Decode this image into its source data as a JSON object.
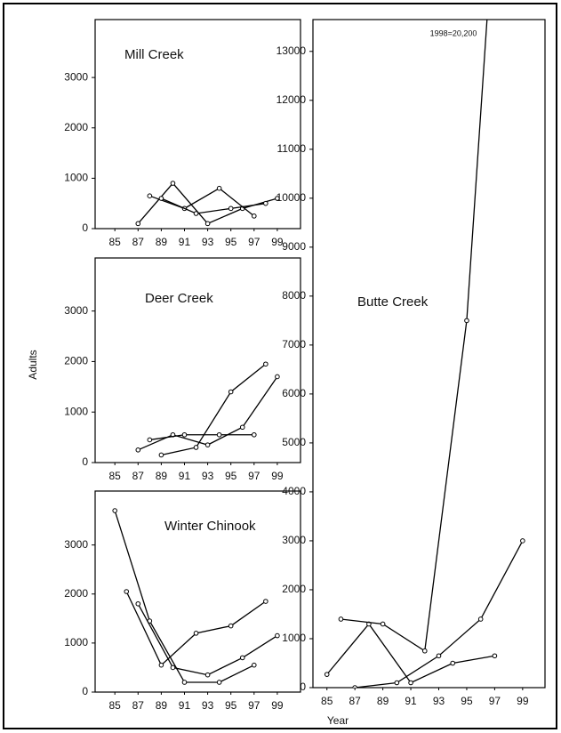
{
  "y_label": "Adults",
  "x_label": "Year",
  "chart_data": [
    {
      "type": "line",
      "title": "Mill Creek",
      "color": "#000000",
      "xlim": [
        83.3,
        101
      ],
      "xticks": [
        85,
        87,
        89,
        91,
        93,
        95,
        97,
        99
      ],
      "ylim": [
        0,
        4150
      ],
      "yticks": [
        0,
        1000,
        2000,
        3000
      ],
      "series": [
        {
          "x": [
            87,
            90,
            93,
            96,
            99
          ],
          "values": [
            100,
            900,
            100,
            400,
            600
          ]
        },
        {
          "x": [
            88,
            91,
            94,
            97
          ],
          "values": [
            650,
            400,
            800,
            250
          ]
        },
        {
          "x": [
            89,
            92,
            95,
            98
          ],
          "values": [
            600,
            300,
            400,
            500
          ]
        }
      ]
    },
    {
      "type": "line",
      "title": "Deer Creek",
      "color": "#000000",
      "xlim": [
        83.3,
        101
      ],
      "xticks": [
        85,
        87,
        89,
        91,
        93,
        95,
        97,
        99
      ],
      "ylim": [
        0,
        4050
      ],
      "yticks": [
        0,
        1000,
        2000,
        3000
      ],
      "series": [
        {
          "x": [
            87,
            90,
            93,
            96,
            99
          ],
          "values": [
            250,
            550,
            350,
            700,
            1700
          ]
        },
        {
          "x": [
            88,
            91,
            94,
            97
          ],
          "values": [
            450,
            550,
            550,
            550
          ]
        },
        {
          "x": [
            89,
            92,
            95,
            98
          ],
          "values": [
            150,
            300,
            1400,
            1950
          ]
        }
      ]
    },
    {
      "type": "line",
      "title": "Winter Chinook",
      "color": "#000000",
      "xlim": [
        83.3,
        101
      ],
      "xticks": [
        85,
        87,
        89,
        91,
        93,
        95,
        97,
        99
      ],
      "ylim": [
        0,
        4100
      ],
      "yticks": [
        0,
        1000,
        2000,
        3000
      ],
      "series": [
        {
          "x": [
            85,
            88,
            91,
            94,
            97
          ],
          "values": [
            3700,
            1450,
            200,
            200,
            550
          ]
        },
        {
          "x": [
            86,
            89,
            92,
            95,
            98
          ],
          "values": [
            2050,
            550,
            1200,
            1350,
            1850
          ]
        },
        {
          "x": [
            87,
            90,
            93,
            96,
            99
          ],
          "values": [
            1800,
            500,
            350,
            700,
            1150
          ]
        }
      ]
    },
    {
      "type": "line",
      "title": "Butte Creek",
      "annotation": "1998=20,200",
      "color": "#000000",
      "xlim": [
        84,
        100.6
      ],
      "xticks": [
        85,
        87,
        89,
        91,
        93,
        95,
        97,
        99
      ],
      "ylim": [
        0,
        13650
      ],
      "yticks": [
        0,
        1000,
        2000,
        3000,
        4000,
        5000,
        6000,
        7000,
        8000,
        9000,
        10000,
        11000,
        12000,
        13000
      ],
      "series": [
        {
          "x": [
            85,
            88,
            91,
            94,
            97
          ],
          "values": [
            270,
            1300,
            100,
            500,
            650
          ]
        },
        {
          "x": [
            86,
            89,
            92,
            95,
            98
          ],
          "values": [
            1400,
            1300,
            750,
            7500,
            20200
          ]
        },
        {
          "x": [
            87,
            90,
            93,
            96,
            99
          ],
          "values": [
            0,
            100,
            650,
            1400,
            3000
          ]
        }
      ]
    }
  ]
}
